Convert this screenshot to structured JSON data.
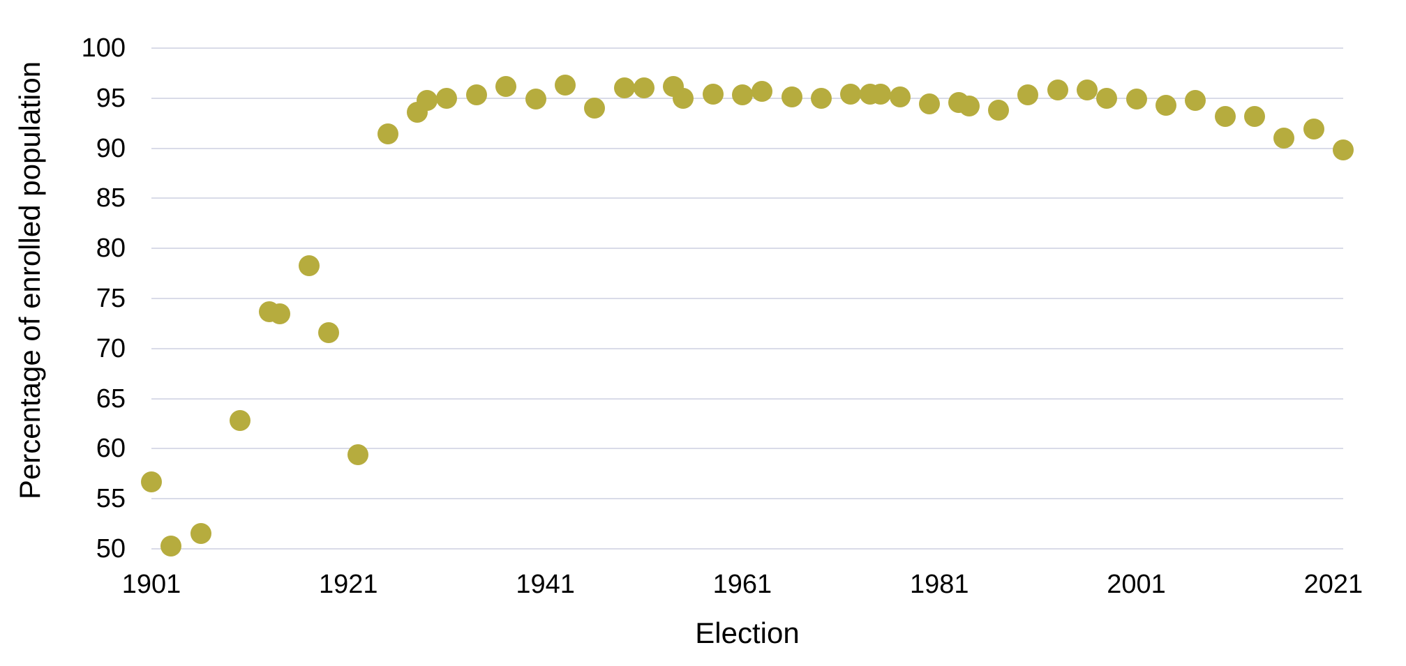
{
  "chart_data": {
    "type": "scatter",
    "title": "",
    "xlabel": "Election",
    "ylabel": "Percentage of enrolled population",
    "xlim": [
      1901,
      2022
    ],
    "ylim": [
      50,
      100
    ],
    "x_tick_labels": [
      "1901",
      "1921",
      "1941",
      "1961",
      "1981",
      "2001",
      "2021"
    ],
    "x_tick_values": [
      1901,
      1921,
      1941,
      1961,
      1981,
      2001,
      2021
    ],
    "y_tick_labels": [
      "50",
      "55",
      "60",
      "65",
      "70",
      "75",
      "80",
      "85",
      "90",
      "95",
      "100"
    ],
    "y_tick_values": [
      50,
      55,
      60,
      65,
      70,
      75,
      80,
      85,
      90,
      95,
      100
    ],
    "grid": "horizontal-only",
    "legend": "none",
    "marker_color": "#b6ac3e",
    "gridline_color": "#d9dbe8",
    "text_color": "#000000",
    "points": [
      {
        "x": 1901,
        "y": 56.7
      },
      {
        "x": 1903,
        "y": 50.3
      },
      {
        "x": 1906,
        "y": 51.5
      },
      {
        "x": 1910,
        "y": 62.8
      },
      {
        "x": 1913,
        "y": 73.7
      },
      {
        "x": 1914,
        "y": 73.5
      },
      {
        "x": 1917,
        "y": 78.3
      },
      {
        "x": 1919,
        "y": 71.6
      },
      {
        "x": 1922,
        "y": 59.4
      },
      {
        "x": 1925,
        "y": 91.4
      },
      {
        "x": 1928,
        "y": 93.6
      },
      {
        "x": 1929,
        "y": 94.8
      },
      {
        "x": 1931,
        "y": 95.0
      },
      {
        "x": 1934,
        "y": 95.3
      },
      {
        "x": 1937,
        "y": 96.2
      },
      {
        "x": 1940,
        "y": 94.9
      },
      {
        "x": 1943,
        "y": 96.3
      },
      {
        "x": 1946,
        "y": 94.0
      },
      {
        "x": 1949,
        "y": 96.0
      },
      {
        "x": 1951,
        "y": 96.0
      },
      {
        "x": 1954,
        "y": 96.2
      },
      {
        "x": 1955,
        "y": 95.0
      },
      {
        "x": 1958,
        "y": 95.4
      },
      {
        "x": 1961,
        "y": 95.3
      },
      {
        "x": 1963,
        "y": 95.7
      },
      {
        "x": 1966,
        "y": 95.1
      },
      {
        "x": 1969,
        "y": 95.0
      },
      {
        "x": 1972,
        "y": 95.4
      },
      {
        "x": 1974,
        "y": 95.4
      },
      {
        "x": 1975,
        "y": 95.4
      },
      {
        "x": 1977,
        "y": 95.1
      },
      {
        "x": 1980,
        "y": 94.4
      },
      {
        "x": 1983,
        "y": 94.6
      },
      {
        "x": 1984,
        "y": 94.2
      },
      {
        "x": 1987,
        "y": 93.8
      },
      {
        "x": 1990,
        "y": 95.3
      },
      {
        "x": 1993,
        "y": 95.8
      },
      {
        "x": 1996,
        "y": 95.8
      },
      {
        "x": 1998,
        "y": 95.0
      },
      {
        "x": 2001,
        "y": 94.9
      },
      {
        "x": 2004,
        "y": 94.3
      },
      {
        "x": 2007,
        "y": 94.8
      },
      {
        "x": 2010,
        "y": 93.2
      },
      {
        "x": 2013,
        "y": 93.2
      },
      {
        "x": 2016,
        "y": 91.0
      },
      {
        "x": 2019,
        "y": 91.9
      },
      {
        "x": 2022,
        "y": 89.8
      }
    ]
  }
}
